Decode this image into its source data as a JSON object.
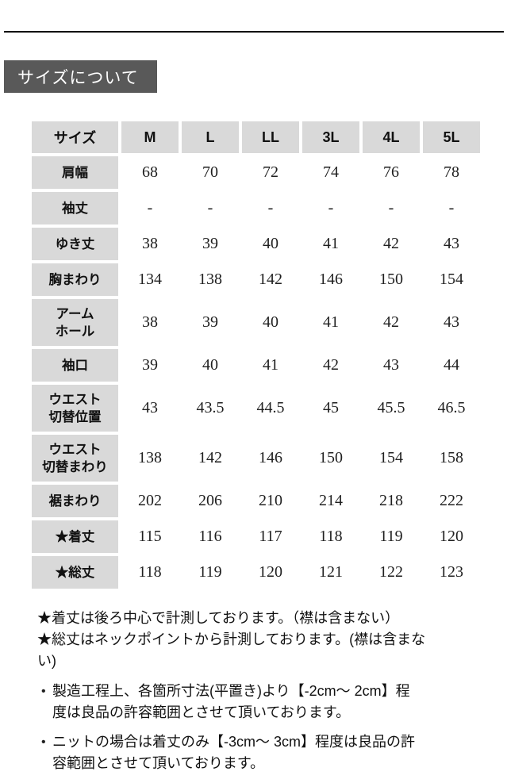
{
  "page": {
    "section_title": "サイズについて"
  },
  "size_table": {
    "corner_label": "サイズ",
    "sizes": [
      "M",
      "L",
      "LL",
      "3L",
      "4L",
      "5L"
    ],
    "rows": [
      {
        "label": "肩幅",
        "tall": false,
        "values": [
          "68",
          "70",
          "72",
          "74",
          "76",
          "78"
        ]
      },
      {
        "label": "袖丈",
        "tall": false,
        "values": [
          "-",
          "-",
          "-",
          "-",
          "-",
          "-"
        ]
      },
      {
        "label": "ゆき丈",
        "tall": false,
        "values": [
          "38",
          "39",
          "40",
          "41",
          "42",
          "43"
        ]
      },
      {
        "label": "胸まわり",
        "tall": false,
        "values": [
          "134",
          "138",
          "142",
          "146",
          "150",
          "154"
        ]
      },
      {
        "label": "アーム\nホール",
        "tall": true,
        "values": [
          "38",
          "39",
          "40",
          "41",
          "42",
          "43"
        ]
      },
      {
        "label": "袖口",
        "tall": false,
        "values": [
          "39",
          "40",
          "41",
          "42",
          "43",
          "44"
        ]
      },
      {
        "label": "ウエスト\n切替位置",
        "tall": true,
        "values": [
          "43",
          "43.5",
          "44.5",
          "45",
          "45.5",
          "46.5"
        ]
      },
      {
        "label": "ウエスト\n切替まわり",
        "tall": true,
        "values": [
          "138",
          "142",
          "146",
          "150",
          "154",
          "158"
        ]
      },
      {
        "label": "裾まわり",
        "tall": false,
        "values": [
          "202",
          "206",
          "210",
          "214",
          "218",
          "222"
        ]
      },
      {
        "label": "★着丈",
        "tall": false,
        "values": [
          "115",
          "116",
          "117",
          "118",
          "119",
          "120"
        ]
      },
      {
        "label": "★総丈",
        "tall": false,
        "values": [
          "118",
          "119",
          "120",
          "121",
          "122",
          "123"
        ]
      }
    ]
  },
  "footnotes": {
    "star_notes": [
      "★着丈は後ろ中心で計測しております。（襟は含まない）",
      "★総丈はネックポイントから計測しております。(襟は含まな\nい)"
    ],
    "bullets": [
      "製造工程上、各箇所寸法(平置き)より【-2cm～ 2cm】程\n度は良品の許容範囲とさせて頂いております。",
      "ニットの場合は着丈のみ【-3cm～ 3cm】程度は良品の許\n容範囲とさせて頂いております。"
    ],
    "bullet_marker": "•"
  },
  "colors": {
    "header_cell_bg": "#d9d9d9",
    "title_box_bg": "#595959",
    "title_text": "#ffffff",
    "rule": "#000000",
    "text": "#1f1f1f"
  }
}
